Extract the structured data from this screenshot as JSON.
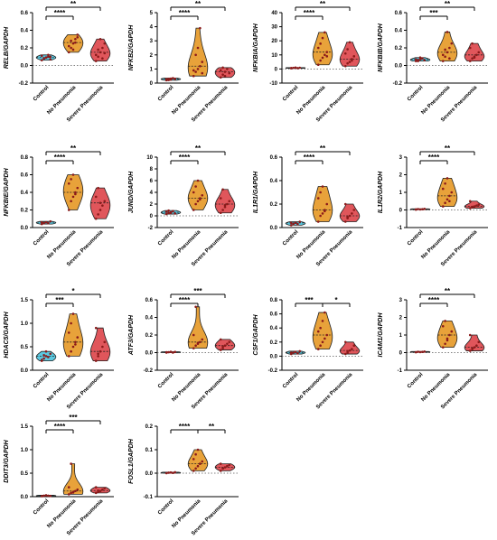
{
  "colors": {
    "control": "#5bc8e0",
    "no_pneumonia": "#e8a23a",
    "severe_pneumonia": "#e0565b",
    "point": "#8b1a1a",
    "axis": "#000000"
  },
  "chart_data": [
    {
      "type": "violin",
      "ylabel": "RELB/GAPDH",
      "ylim": [
        -0.2,
        0.6
      ],
      "yticks": [
        "-0.2",
        "0.0",
        "0.2",
        "0.4",
        "0.6"
      ],
      "categories": [
        "Control",
        "No Pneumonia",
        "Severe Pneumonia"
      ],
      "series": [
        {
          "values": [
            0.06,
            0.08,
            0.09,
            0.1,
            0.07,
            0.11,
            0.08,
            0.09,
            0.12,
            0.1
          ]
        },
        {
          "values": [
            0.15,
            0.2,
            0.25,
            0.3,
            0.35,
            0.22,
            0.28,
            0.18,
            0.26,
            0.32
          ]
        },
        {
          "values": [
            0.05,
            0.1,
            0.15,
            0.2,
            0.25,
            0.12,
            0.18,
            0.3,
            0.08,
            0.14
          ]
        }
      ],
      "significance": [
        {
          "from": 0,
          "to": 1,
          "label": "****"
        },
        {
          "from": 0,
          "to": 2,
          "label": "**"
        }
      ]
    },
    {
      "type": "violin",
      "ylabel": "NFKB2/GAPDH",
      "ylim": [
        0,
        5
      ],
      "yticks": [
        "0",
        "1",
        "2",
        "3",
        "4",
        "5"
      ],
      "categories": [
        "Control",
        "No Pneumonia",
        "Severe Pneumonia"
      ],
      "series": [
        {
          "values": [
            0.2,
            0.3,
            0.25,
            0.35,
            0.3,
            0.28,
            0.22,
            0.32
          ]
        },
        {
          "values": [
            0.5,
            0.8,
            1.0,
            1.2,
            1.5,
            0.9,
            2.0,
            2.5,
            3.9,
            0.7
          ]
        },
        {
          "values": [
            0.4,
            0.6,
            0.8,
            1.0,
            0.7,
            0.9,
            1.1,
            0.5
          ]
        }
      ],
      "significance": [
        {
          "from": 0,
          "to": 1,
          "label": "****"
        },
        {
          "from": 0,
          "to": 2,
          "label": "**"
        }
      ]
    },
    {
      "type": "violin",
      "ylabel": "NFKBIA/GAPDH",
      "ylim": [
        -10,
        40
      ],
      "yticks": [
        "-10",
        "0",
        "10",
        "20",
        "30",
        "40"
      ],
      "categories": [
        "Control",
        "No Pneumonia",
        "Severe Pneumonia"
      ],
      "series": [
        {
          "values": [
            0.5,
            0.8,
            1.0,
            0.6,
            0.9,
            0.7
          ]
        },
        {
          "values": [
            3,
            6,
            8,
            10,
            12,
            15,
            18,
            22,
            26,
            9
          ]
        },
        {
          "values": [
            2,
            4,
            5,
            7,
            9,
            11,
            14,
            19,
            6
          ]
        }
      ],
      "significance": [
        {
          "from": 0,
          "to": 1,
          "label": "****"
        },
        {
          "from": 0,
          "to": 2,
          "label": "**"
        }
      ]
    },
    {
      "type": "violin",
      "ylabel": "NFKBIB/GAPDH",
      "ylim": [
        -0.2,
        0.6
      ],
      "yticks": [
        "-0.2",
        "0.0",
        "0.2",
        "0.4",
        "0.6"
      ],
      "categories": [
        "Control",
        "No Pneumonia",
        "Severe Pneumonia"
      ],
      "series": [
        {
          "values": [
            0.05,
            0.06,
            0.07,
            0.08,
            0.06,
            0.07,
            0.05,
            0.09
          ]
        },
        {
          "values": [
            0.05,
            0.1,
            0.15,
            0.2,
            0.25,
            0.12,
            0.18,
            0.38,
            0.08
          ]
        },
        {
          "values": [
            0.05,
            0.08,
            0.1,
            0.12,
            0.15,
            0.2,
            0.25,
            0.09
          ]
        }
      ],
      "significance": [
        {
          "from": 0,
          "to": 1,
          "label": "***"
        },
        {
          "from": 0,
          "to": 2,
          "label": "**"
        }
      ]
    },
    {
      "type": "violin",
      "ylabel": "NFKBIE/GAPDH",
      "ylim": [
        0,
        0.8
      ],
      "yticks": [
        "0.0",
        "0.2",
        "0.4",
        "0.6",
        "0.8"
      ],
      "categories": [
        "Control",
        "No Pneumonia",
        "Severe Pneumonia"
      ],
      "series": [
        {
          "values": [
            0.04,
            0.05,
            0.06,
            0.05,
            0.07,
            0.06
          ]
        },
        {
          "values": [
            0.2,
            0.3,
            0.35,
            0.4,
            0.45,
            0.5,
            0.55,
            0.6,
            0.38
          ]
        },
        {
          "values": [
            0.1,
            0.15,
            0.2,
            0.25,
            0.3,
            0.35,
            0.45,
            0.28
          ]
        }
      ],
      "significance": [
        {
          "from": 0,
          "to": 1,
          "label": "****"
        },
        {
          "from": 0,
          "to": 2,
          "label": "**"
        }
      ]
    },
    {
      "type": "violin",
      "ylabel": "JUND/GAPDH",
      "ylim": [
        -2,
        10
      ],
      "yticks": [
        "-2",
        "0",
        "2",
        "4",
        "6",
        "8",
        "10"
      ],
      "categories": [
        "Control",
        "No Pneumonia",
        "Severe Pneumonia"
      ],
      "series": [
        {
          "values": [
            0.3,
            0.5,
            0.6,
            0.8,
            0.4,
            0.7,
            0.9,
            0.5
          ]
        },
        {
          "values": [
            1,
            2,
            2.5,
            3,
            3.5,
            4,
            5,
            6,
            2.8
          ]
        },
        {
          "values": [
            0.5,
            1,
            1.5,
            2,
            2.5,
            3,
            4.5,
            1.8
          ]
        }
      ],
      "significance": [
        {
          "from": 0,
          "to": 1,
          "label": "****"
        },
        {
          "from": 0,
          "to": 2,
          "label": "**"
        }
      ]
    },
    {
      "type": "violin",
      "ylabel": "IL1R1/GAPDH",
      "ylim": [
        0,
        0.6
      ],
      "yticks": [
        "0.0",
        "0.2",
        "0.4",
        "0.6"
      ],
      "categories": [
        "Control",
        "No Pneumonia",
        "Severe Pneumonia"
      ],
      "series": [
        {
          "values": [
            0.02,
            0.03,
            0.04,
            0.03,
            0.05,
            0.04
          ]
        },
        {
          "values": [
            0.05,
            0.1,
            0.12,
            0.15,
            0.2,
            0.25,
            0.3,
            0.35,
            0.14
          ]
        },
        {
          "values": [
            0.05,
            0.08,
            0.1,
            0.12,
            0.15,
            0.2,
            0.09
          ]
        }
      ],
      "significance": [
        {
          "from": 0,
          "to": 1,
          "label": "****"
        },
        {
          "from": 0,
          "to": 2,
          "label": "**"
        }
      ]
    },
    {
      "type": "violin",
      "ylabel": "IL1R2/GAPDH",
      "ylim": [
        -1,
        3
      ],
      "yticks": [
        "-1",
        "0",
        "1",
        "2",
        "3"
      ],
      "categories": [
        "Control",
        "No Pneumonia",
        "Severe Pneumonia"
      ],
      "series": [
        {
          "values": [
            0.02,
            0.05,
            0.03,
            0.04,
            0.06,
            0.03
          ]
        },
        {
          "values": [
            0.2,
            0.4,
            0.6,
            0.8,
            1.0,
            1.2,
            1.5,
            1.8,
            0.5
          ]
        },
        {
          "values": [
            0.1,
            0.15,
            0.2,
            0.25,
            0.3,
            0.5,
            0.18
          ]
        }
      ],
      "significance": [
        {
          "from": 0,
          "to": 1,
          "label": "****"
        },
        {
          "from": 0,
          "to": 2,
          "label": "**"
        }
      ]
    },
    {
      "type": "violin",
      "ylabel": "HDAC5/GAPDH",
      "ylim": [
        0,
        1.5
      ],
      "yticks": [
        "0.0",
        "0.5",
        "1.0",
        "1.5"
      ],
      "categories": [
        "Control",
        "No Pneumonia",
        "Severe Pneumonia"
      ],
      "series": [
        {
          "values": [
            0.2,
            0.25,
            0.3,
            0.28,
            0.35,
            0.22,
            0.32,
            0.4
          ]
        },
        {
          "values": [
            0.3,
            0.4,
            0.5,
            0.6,
            0.7,
            0.8,
            1.0,
            1.2,
            0.55
          ]
        },
        {
          "values": [
            0.2,
            0.3,
            0.4,
            0.5,
            0.6,
            0.9,
            0.35
          ]
        }
      ],
      "significance": [
        {
          "from": 0,
          "to": 1,
          "label": "***"
        },
        {
          "from": 0,
          "to": 2,
          "label": "*"
        }
      ]
    },
    {
      "type": "violin",
      "ylabel": "ATF3/GAPDH",
      "ylim": [
        -0.2,
        0.6
      ],
      "yticks": [
        "-0.2",
        "0.0",
        "0.2",
        "0.4",
        "0.6"
      ],
      "categories": [
        "Control",
        "No Pneumonia",
        "Severe Pneumonia"
      ],
      "series": [
        {
          "values": [
            0.0,
            0.005,
            0.01,
            0.0,
            0.008,
            0.005
          ]
        },
        {
          "values": [
            0.05,
            0.08,
            0.1,
            0.12,
            0.15,
            0.2,
            0.52,
            0.11
          ]
        },
        {
          "values": [
            0.03,
            0.05,
            0.08,
            0.1,
            0.12,
            0.15,
            0.07
          ]
        }
      ],
      "significance": [
        {
          "from": 0,
          "to": 1,
          "label": "****"
        },
        {
          "from": 0,
          "to": 2,
          "label": "***"
        }
      ]
    },
    {
      "type": "violin",
      "ylabel": "CSF1/GAPDH",
      "ylim": [
        -0.2,
        0.8
      ],
      "yticks": [
        "-0.2",
        "0.0",
        "0.2",
        "0.4",
        "0.6",
        "0.8"
      ],
      "categories": [
        "Control",
        "No Pneumonia",
        "Severe Pneumonia"
      ],
      "series": [
        {
          "values": [
            0.03,
            0.05,
            0.06,
            0.04,
            0.07,
            0.05
          ]
        },
        {
          "values": [
            0.1,
            0.15,
            0.2,
            0.25,
            0.3,
            0.35,
            0.4,
            0.5,
            0.62
          ]
        },
        {
          "values": [
            0.03,
            0.05,
            0.08,
            0.1,
            0.15,
            0.2,
            0.07
          ]
        }
      ],
      "significance": [
        {
          "from": 0,
          "to": 1,
          "label": "***"
        },
        {
          "from": 1,
          "to": 2,
          "label": "*"
        }
      ]
    },
    {
      "type": "violin",
      "ylabel": "ICAM1/GAPDH",
      "ylim": [
        -1,
        3
      ],
      "yticks": [
        "-1",
        "0",
        "1",
        "2",
        "3"
      ],
      "categories": [
        "Control",
        "No Pneumonia",
        "Severe Pneumonia"
      ],
      "series": [
        {
          "values": [
            0.02,
            0.05,
            0.03,
            0.04,
            0.06
          ]
        },
        {
          "values": [
            0.3,
            0.5,
            0.8,
            1.0,
            1.2,
            1.5,
            1.8,
            0.7
          ]
        },
        {
          "values": [
            0.1,
            0.2,
            0.3,
            0.4,
            0.6,
            1.0,
            0.25
          ]
        }
      ],
      "significance": [
        {
          "from": 0,
          "to": 1,
          "label": "****"
        },
        {
          "from": 0,
          "to": 2,
          "label": "**"
        }
      ]
    },
    {
      "type": "violin",
      "ylabel": "DDIT3/GAPDH",
      "ylim": [
        0,
        1.5
      ],
      "yticks": [
        "0.0",
        "0.5",
        "1.0",
        "1.5"
      ],
      "categories": [
        "Control",
        "No Pneumonia",
        "Severe Pneumonia"
      ],
      "series": [
        {
          "values": [
            0.01,
            0.02,
            0.03,
            0.02,
            0.015
          ]
        },
        {
          "values": [
            0.05,
            0.08,
            0.1,
            0.12,
            0.15,
            0.2,
            0.7,
            0.09
          ]
        },
        {
          "values": [
            0.08,
            0.1,
            0.12,
            0.15,
            0.18,
            0.2,
            0.13
          ]
        }
      ],
      "significance": [
        {
          "from": 0,
          "to": 1,
          "label": "****"
        },
        {
          "from": 0,
          "to": 2,
          "label": "***"
        }
      ]
    },
    {
      "type": "violin",
      "ylabel": "FOSL1/GAPDH",
      "ylim": [
        -0.1,
        0.2
      ],
      "yticks": [
        "-0.1",
        "0.0",
        "0.1",
        "0.2"
      ],
      "categories": [
        "Control",
        "No Pneumonia",
        "Severe Pneumonia"
      ],
      "series": [
        {
          "values": [
            0.0,
            0.002,
            0.003,
            0.001,
            0.004
          ]
        },
        {
          "values": [
            0.01,
            0.02,
            0.03,
            0.04,
            0.05,
            0.06,
            0.08,
            0.1,
            0.04
          ]
        },
        {
          "values": [
            0.01,
            0.02,
            0.025,
            0.03,
            0.035,
            0.04,
            0.02
          ]
        }
      ],
      "significance": [
        {
          "from": 0,
          "to": 1,
          "label": "****"
        },
        {
          "from": 1,
          "to": 2,
          "label": "**"
        }
      ]
    }
  ]
}
